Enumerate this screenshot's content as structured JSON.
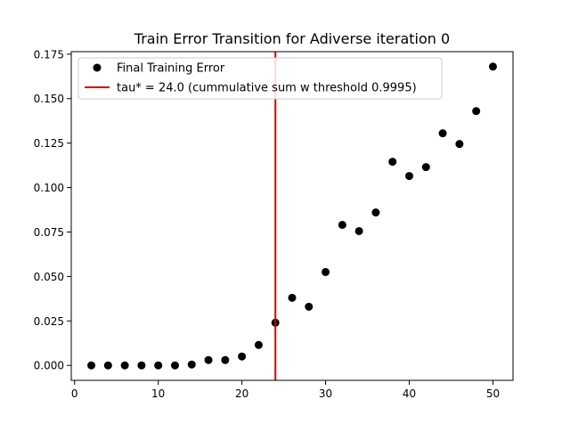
{
  "chart_data": {
    "type": "scatter",
    "title": "Train Error Transition for Adiverse iteration 0",
    "xlabel": "",
    "ylabel": "",
    "xlim": [
      -0.4,
      52.4
    ],
    "ylim": [
      -0.0084,
      0.1764
    ],
    "x_ticks": [
      0,
      10,
      20,
      30,
      40,
      50
    ],
    "x_tick_labels": [
      "0",
      "10",
      "20",
      "30",
      "40",
      "50"
    ],
    "y_ticks": [
      0.0,
      0.025,
      0.05,
      0.075,
      0.1,
      0.125,
      0.15,
      0.175
    ],
    "y_tick_labels": [
      "0.000",
      "0.025",
      "0.050",
      "0.075",
      "0.100",
      "0.125",
      "0.150",
      "0.175"
    ],
    "grid": false,
    "legend_position": "upper-left",
    "series": [
      {
        "name": "Final Training Error",
        "marker": "circle",
        "color": "#000000",
        "points": [
          {
            "x": 2,
            "y": 0.0
          },
          {
            "x": 4,
            "y": 0.0
          },
          {
            "x": 6,
            "y": 0.0
          },
          {
            "x": 8,
            "y": 0.0
          },
          {
            "x": 10,
            "y": 0.0
          },
          {
            "x": 12,
            "y": 0.0
          },
          {
            "x": 14,
            "y": 0.0005
          },
          {
            "x": 16,
            "y": 0.003
          },
          {
            "x": 18,
            "y": 0.003
          },
          {
            "x": 20,
            "y": 0.005
          },
          {
            "x": 22,
            "y": 0.0115
          },
          {
            "x": 24,
            "y": 0.024
          },
          {
            "x": 26,
            "y": 0.038
          },
          {
            "x": 28,
            "y": 0.033
          },
          {
            "x": 30,
            "y": 0.0525
          },
          {
            "x": 32,
            "y": 0.079
          },
          {
            "x": 34,
            "y": 0.0755
          },
          {
            "x": 36,
            "y": 0.086
          },
          {
            "x": 38,
            "y": 0.1145
          },
          {
            "x": 40,
            "y": 0.1065
          },
          {
            "x": 42,
            "y": 0.1115
          },
          {
            "x": 44,
            "y": 0.1305
          },
          {
            "x": 46,
            "y": 0.1245
          },
          {
            "x": 48,
            "y": 0.143
          },
          {
            "x": 50,
            "y": 0.168
          }
        ]
      }
    ],
    "vertical_line": {
      "x": 24.0,
      "color": "#dd0000",
      "label": "tau* = 24.0 (cummulative sum w threshold 0.9995)"
    }
  }
}
